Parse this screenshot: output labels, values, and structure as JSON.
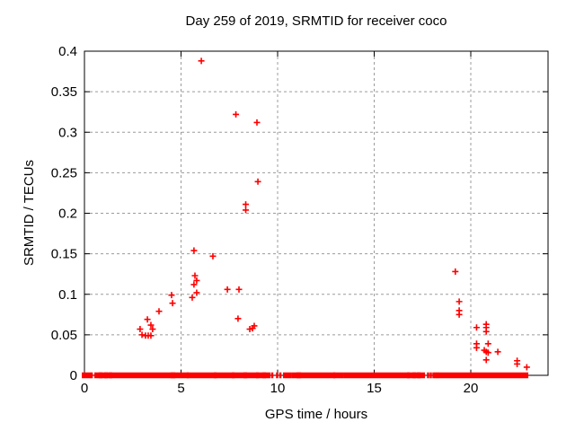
{
  "chart_data": {
    "type": "scatter",
    "title": "Day 259 of 2019, SRMTID for receiver coco",
    "xlabel": "GPS time / hours",
    "ylabel": "SRMTID / TECUs",
    "xlim": [
      0,
      24
    ],
    "ylim": [
      0,
      0.4
    ],
    "xticks": [
      0,
      5,
      10,
      15,
      20
    ],
    "xtick_labels": [
      "0",
      "5",
      "10",
      "15",
      "20"
    ],
    "yticks": [
      0,
      0.05,
      0.1,
      0.15,
      0.2,
      0.25,
      0.3,
      0.35,
      0.4
    ],
    "ytick_labels": [
      "0",
      "0.05",
      "0.1",
      "0.15",
      "0.2",
      "0.25",
      "0.3",
      "0.35",
      "0.4"
    ],
    "grid": true,
    "legend": "none",
    "marker": {
      "shape": "plus",
      "color": "#ff0000",
      "size": 7
    },
    "grid_color": "#9b9b9b",
    "axis_color": "#000000",
    "background": "#ffffff",
    "series": [
      {
        "name": "SRMTID",
        "points": [
          [
            6.05,
            0.388
          ],
          [
            7.84,
            0.322
          ],
          [
            8.93,
            0.312
          ],
          [
            8.98,
            0.239
          ],
          [
            8.35,
            0.211
          ],
          [
            8.35,
            0.204
          ],
          [
            5.67,
            0.154
          ],
          [
            6.65,
            0.147
          ],
          [
            5.72,
            0.123
          ],
          [
            5.81,
            0.117
          ],
          [
            5.67,
            0.112
          ],
          [
            5.81,
            0.102
          ],
          [
            5.58,
            0.096
          ],
          [
            4.51,
            0.099
          ],
          [
            4.56,
            0.089
          ],
          [
            7.4,
            0.106
          ],
          [
            8.0,
            0.106
          ],
          [
            7.95,
            0.07
          ],
          [
            3.86,
            0.079
          ],
          [
            3.26,
            0.069
          ],
          [
            3.44,
            0.062
          ],
          [
            2.88,
            0.057
          ],
          [
            3.53,
            0.057
          ],
          [
            2.98,
            0.05
          ],
          [
            3.16,
            0.049
          ],
          [
            3.3,
            0.049
          ],
          [
            3.44,
            0.049
          ],
          [
            8.56,
            0.057
          ],
          [
            8.7,
            0.058
          ],
          [
            8.79,
            0.061
          ],
          [
            19.2,
            0.128
          ],
          [
            19.4,
            0.091
          ],
          [
            19.4,
            0.08
          ],
          [
            19.4,
            0.075
          ],
          [
            20.3,
            0.059
          ],
          [
            20.8,
            0.063
          ],
          [
            20.8,
            0.059
          ],
          [
            20.8,
            0.054
          ],
          [
            20.3,
            0.039
          ],
          [
            20.3,
            0.034
          ],
          [
            20.9,
            0.039
          ],
          [
            20.7,
            0.031
          ],
          [
            20.8,
            0.029
          ],
          [
            20.9,
            0.028
          ],
          [
            21.4,
            0.029
          ],
          [
            20.8,
            0.019
          ],
          [
            22.4,
            0.018
          ],
          [
            22.4,
            0.014
          ],
          [
            22.9,
            0.01
          ]
        ],
        "baseline_segments": [
          [
            0.0,
            0.2
          ],
          [
            0.33,
            0.42
          ],
          [
            0.65,
            0.79
          ],
          [
            0.88,
            1.07
          ],
          [
            1.16,
            1.3
          ],
          [
            1.4,
            4.56
          ],
          [
            4.6,
            5.26
          ],
          [
            5.44,
            6.7
          ],
          [
            6.84,
            7.63
          ],
          [
            7.77,
            8.28
          ],
          [
            8.37,
            8.88
          ],
          [
            9.02,
            9.26
          ],
          [
            9.35,
            9.49
          ],
          [
            9.67,
            9.77
          ],
          [
            9.95,
            10.0
          ],
          [
            10.09,
            10.19
          ],
          [
            10.42,
            10.6
          ],
          [
            10.88,
            11.07
          ],
          [
            11.12,
            12.84
          ],
          [
            13.02,
            13.3
          ],
          [
            13.58,
            16.7
          ],
          [
            16.84,
            17.02
          ],
          [
            17.12,
            17.26
          ],
          [
            17.35,
            17.49
          ],
          [
            17.77,
            17.81
          ],
          [
            17.91,
            17.95
          ],
          [
            18.05,
            18.09
          ],
          [
            18.14,
            18.19
          ],
          [
            18.23,
            18.28
          ],
          [
            18.42,
            22.84
          ]
        ]
      }
    ]
  }
}
